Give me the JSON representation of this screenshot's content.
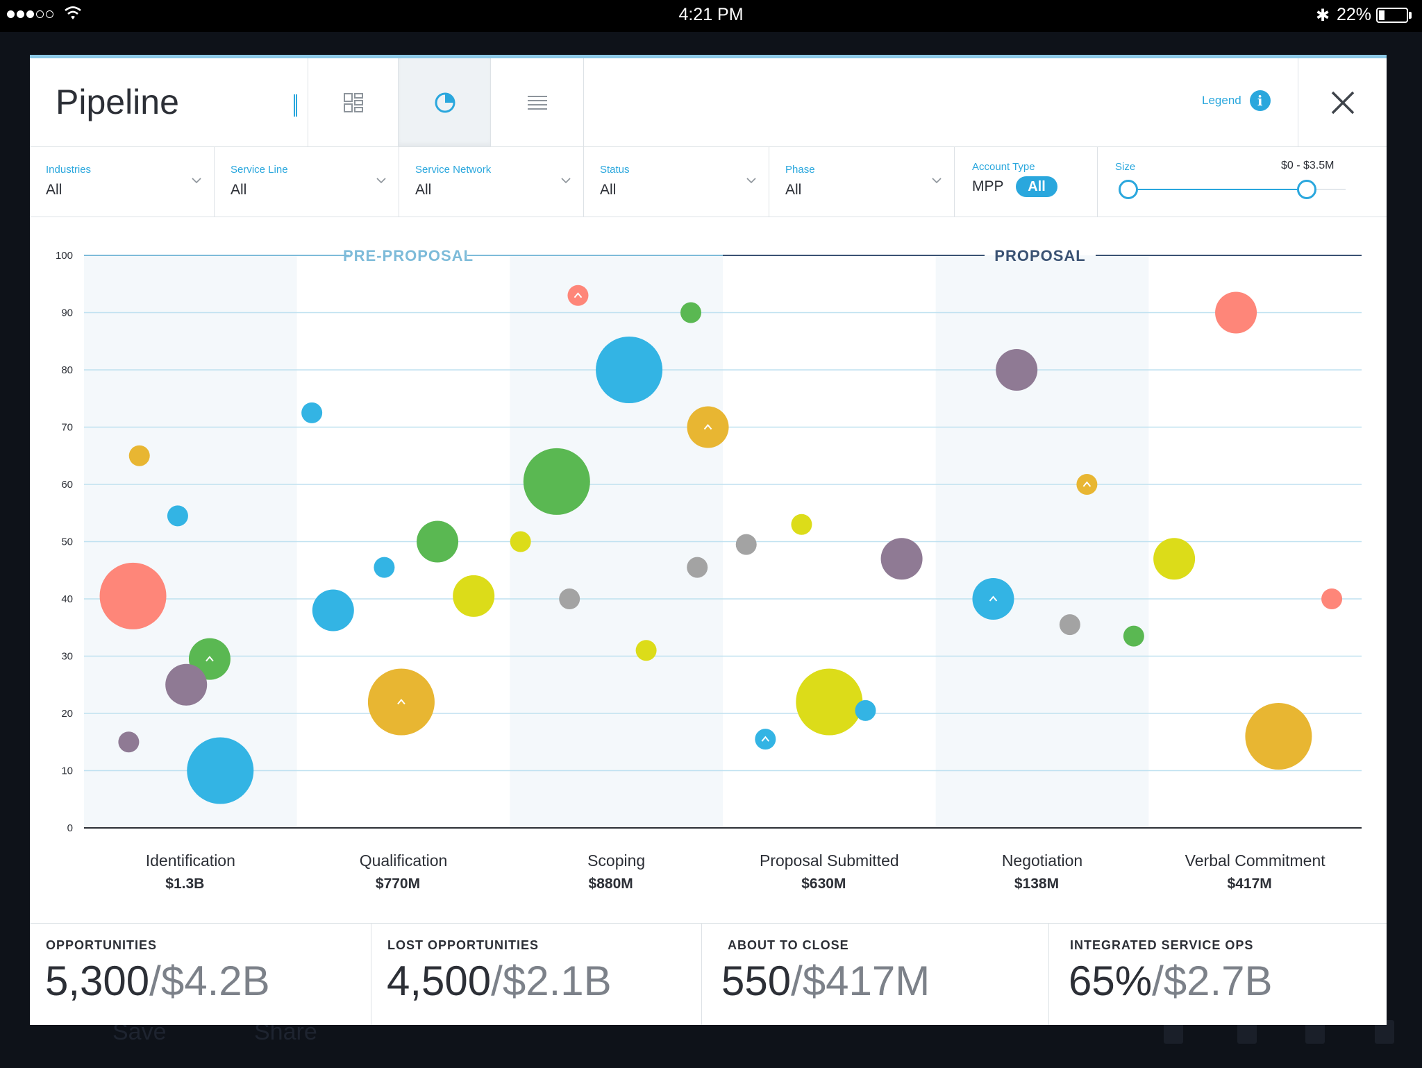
{
  "status_bar": {
    "time": "4:21 PM",
    "battery_percent": "22%",
    "battery_level": 0.22,
    "bluetooth_icon": "bluetooth-icon",
    "wifi_icon": "wifi-icon"
  },
  "background_app": {
    "save_label": "Save",
    "share_label": "Share"
  },
  "header": {
    "title": "Pipeline",
    "views": [
      {
        "name": "grid-view-icon",
        "active": false
      },
      {
        "name": "pie-view-icon",
        "active": true
      },
      {
        "name": "list-view-icon",
        "active": false
      }
    ],
    "legend_label": "Legend",
    "legend_icon": "info-icon",
    "close_icon": "close-icon"
  },
  "filters": {
    "industries": {
      "label": "Industries",
      "value": "All"
    },
    "service_line": {
      "label": "Service Line",
      "value": "All"
    },
    "service_network": {
      "label": "Service Network",
      "value": "All"
    },
    "status": {
      "label": "Status",
      "value": "All"
    },
    "phase": {
      "label": "Phase",
      "value": "All"
    },
    "account_type": {
      "label": "Account Type",
      "option": "MPP",
      "selected": "All"
    },
    "size": {
      "label": "Size",
      "range": "$0 - $3.5M",
      "min_fraction": 0,
      "max_fraction": 1
    }
  },
  "colors": {
    "accent": "#2aa7dd",
    "red": "#fe8679",
    "yellow": "#e8b632",
    "blue": "#33b4e4",
    "green": "#5ab852",
    "purple": "#8f7a94",
    "gray": "#a3a3a3",
    "lime": "#dcdc19",
    "pre_proposal": "#7dbbd9",
    "proposal": "#3a5273"
  },
  "chart_data": {
    "type": "scatter",
    "y_ticks": [
      "100",
      "90",
      "80",
      "70",
      "60",
      "50",
      "40",
      "30",
      "20",
      "10",
      "0"
    ],
    "ylim": [
      0,
      100
    ],
    "phases": [
      {
        "label": "PRE-PROPOSAL",
        "stages": [
          0,
          1,
          2
        ]
      },
      {
        "label": "PROPOSAL",
        "stages": [
          3,
          4,
          5
        ]
      }
    ],
    "stages": [
      {
        "name": "Identification",
        "value": "$1.3B"
      },
      {
        "name": "Qualification",
        "value": "$770M"
      },
      {
        "name": "Scoping",
        "value": "$880M"
      },
      {
        "name": "Proposal Submitted",
        "value": "$630M"
      },
      {
        "name": "Negotiation",
        "value": "$138M"
      },
      {
        "name": "Verbal Commitment",
        "value": "$417M"
      }
    ],
    "points": [
      {
        "stage": 0.26,
        "y": 65,
        "r": 15,
        "color": "yellow"
      },
      {
        "stage": 0.44,
        "y": 54.5,
        "r": 15,
        "color": "blue"
      },
      {
        "stage": 0.23,
        "y": 40.5,
        "r": 48,
        "color": "red"
      },
      {
        "stage": 0.59,
        "y": 29.5,
        "r": 30,
        "color": "green",
        "marker": "^"
      },
      {
        "stage": 0.48,
        "y": 25,
        "r": 30,
        "color": "purple"
      },
      {
        "stage": 0.21,
        "y": 15,
        "r": 15,
        "color": "purple"
      },
      {
        "stage": 0.64,
        "y": 10,
        "r": 48,
        "color": "blue"
      },
      {
        "stage": 1.07,
        "y": 72.5,
        "r": 15,
        "color": "blue"
      },
      {
        "stage": 1.41,
        "y": 45.5,
        "r": 15,
        "color": "blue"
      },
      {
        "stage": 1.66,
        "y": 50,
        "r": 30,
        "color": "green"
      },
      {
        "stage": 1.83,
        "y": 40.5,
        "r": 30,
        "color": "lime"
      },
      {
        "stage": 1.17,
        "y": 38,
        "r": 30,
        "color": "blue"
      },
      {
        "stage": 1.49,
        "y": 22,
        "r": 48,
        "color": "yellow",
        "marker": "^"
      },
      {
        "stage": 2.05,
        "y": 50,
        "r": 15,
        "color": "lime"
      },
      {
        "stage": 2.32,
        "y": 93,
        "r": 15,
        "color": "red",
        "marker": "^"
      },
      {
        "stage": 2.85,
        "y": 90,
        "r": 15,
        "color": "green"
      },
      {
        "stage": 2.56,
        "y": 80,
        "r": 48,
        "color": "blue"
      },
      {
        "stage": 2.93,
        "y": 70,
        "r": 30,
        "color": "yellow",
        "marker": "^"
      },
      {
        "stage": 2.22,
        "y": 60.5,
        "r": 48,
        "color": "green"
      },
      {
        "stage": 2.88,
        "y": 45.5,
        "r": 15,
        "color": "gray"
      },
      {
        "stage": 2.28,
        "y": 40,
        "r": 15,
        "color": "gray"
      },
      {
        "stage": 2.64,
        "y": 31,
        "r": 15,
        "color": "lime"
      },
      {
        "stage": 3.11,
        "y": 49.5,
        "r": 15,
        "color": "gray"
      },
      {
        "stage": 3.37,
        "y": 53,
        "r": 15,
        "color": "lime"
      },
      {
        "stage": 3.84,
        "y": 47,
        "r": 30,
        "color": "purple"
      },
      {
        "stage": 3.5,
        "y": 22,
        "r": 48,
        "color": "lime"
      },
      {
        "stage": 3.67,
        "y": 20.5,
        "r": 15,
        "color": "blue"
      },
      {
        "stage": 3.2,
        "y": 15.5,
        "r": 15,
        "color": "blue",
        "marker": "^"
      },
      {
        "stage": 4.38,
        "y": 80,
        "r": 30,
        "color": "purple"
      },
      {
        "stage": 4.71,
        "y": 60,
        "r": 15,
        "color": "yellow",
        "marker": "^"
      },
      {
        "stage": 4.27,
        "y": 40,
        "r": 30,
        "color": "blue",
        "marker": "^"
      },
      {
        "stage": 4.63,
        "y": 35.5,
        "r": 15,
        "color": "gray"
      },
      {
        "stage": 4.93,
        "y": 33.5,
        "r": 15,
        "color": "green"
      },
      {
        "stage": 5.41,
        "y": 90,
        "r": 30,
        "color": "red"
      },
      {
        "stage": 5.12,
        "y": 47,
        "r": 30,
        "color": "lime"
      },
      {
        "stage": 5.86,
        "y": 40,
        "r": 15,
        "color": "red"
      },
      {
        "stage": 5.61,
        "y": 16,
        "r": 48,
        "color": "yellow"
      }
    ]
  },
  "stats": [
    {
      "label": "OPPORTUNITIES",
      "count": "5,300",
      "amount": "$4.2B"
    },
    {
      "label": "LOST OPPORTUNITIES",
      "count": "4,500",
      "amount": "$2.1B"
    },
    {
      "label": "ABOUT TO CLOSE",
      "count": "550",
      "amount": "$417M"
    },
    {
      "label": "INTEGRATED SERVICE OPS",
      "count": "65%",
      "amount": "$2.7B"
    }
  ]
}
